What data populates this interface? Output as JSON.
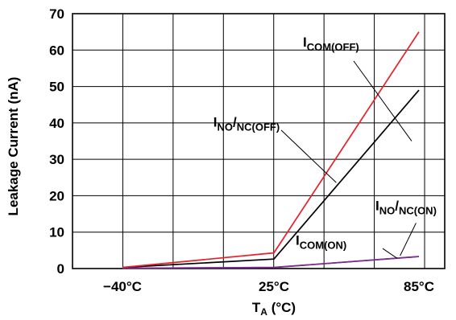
{
  "chart_data": {
    "type": "line",
    "xlabel_main": "T",
    "xlabel_sub": "A",
    "xlabel_rest": " (°C)",
    "ylabel": "Leakage Current (nA)",
    "x": [
      "−40°C",
      "25°C",
      "85°C"
    ],
    "ylim": [
      0,
      70
    ],
    "yticks": [
      "0",
      "10",
      "20",
      "30",
      "40",
      "50",
      "60",
      "70"
    ],
    "grid": true,
    "series": [
      {
        "key": "com-off",
        "values": [
          0.3,
          4.3,
          65
        ],
        "color": "#e8202a",
        "label_main": "I",
        "label_sub": "COM(OFF)",
        "label_x": 1.2,
        "label_y": 61,
        "leader": [
          [
            1.55,
            57.0
          ],
          [
            1.95,
            35.0
          ]
        ]
      },
      {
        "key": "no-nc-off",
        "values": [
          0.3,
          2.6,
          49
        ],
        "color": "#000000",
        "label_main": "I",
        "label_sub": "NO",
        "label_mid": "/",
        "label_sub2": "NC(OFF)",
        "label_x": 0.6,
        "label_y": 39,
        "leader": [
          [
            1.05,
            38.0
          ],
          [
            1.43,
            23.6
          ]
        ]
      },
      {
        "key": "no-nc-on",
        "values": [
          0.1,
          0.3,
          3.3
        ],
        "color": "#7b2c8f",
        "label_main": "I",
        "label_sub": "NO",
        "label_mid": "/",
        "label_sub2": "NC(ON)",
        "label_x": 1.7,
        "label_y": 16,
        "leader": [
          [
            1.98,
            12.5
          ],
          [
            1.87,
            3.5
          ]
        ]
      },
      {
        "key": "com-on",
        "values": [
          0.1,
          0.3,
          3.3
        ],
        "color": "#7b2c8f",
        "label_main": "I",
        "label_sub": "COM(ON)",
        "label_x": 1.15,
        "label_y": 6.5,
        "leader": [
          [
            1.75,
            5.5
          ],
          [
            1.85,
            2.8
          ]
        ]
      }
    ]
  }
}
